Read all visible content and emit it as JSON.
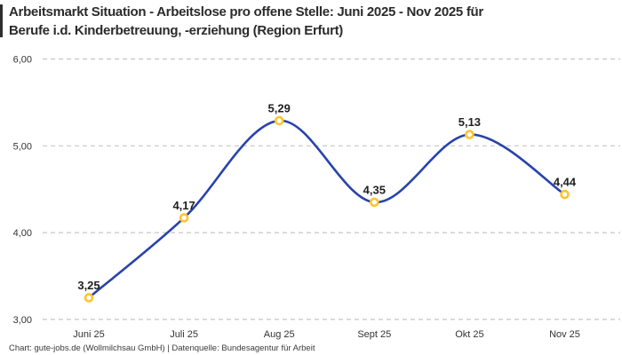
{
  "title": {
    "line1": "Arbeitsmarkt Situation - Arbeitslose pro offene Stelle: Juni 2025 - Nov 2025 für",
    "line2": "Berufe i.d. Kinderbetreuung, -erziehung (Region Erfurt)"
  },
  "footer": "Chart: gute-jobs.de (Wollmilchsau GmbH) | Datenquelle: Bundesagentur für Arbeit",
  "colors": {
    "line": "#2843ac",
    "marker_ring": "#ffc42e",
    "marker_fill": "#ffffff",
    "grid": "#c6c6c6",
    "axis_text": "#333333",
    "point_label_text": "#1f1f1f",
    "title_text": "#2b2b2b",
    "footer_text": "#3a3a3a",
    "background": "#ffffff"
  },
  "chart_data": {
    "type": "line",
    "line_style": "smooth",
    "categories": [
      "Juni 25",
      "Juli 25",
      "Aug 25",
      "Sept 25",
      "Okt 25",
      "Nov 25"
    ],
    "values": [
      3.25,
      4.17,
      5.29,
      4.35,
      5.13,
      4.44
    ],
    "point_labels": [
      "3,25",
      "4,17",
      "5,29",
      "4,35",
      "5,13",
      "4,44"
    ],
    "yticks": [
      {
        "value": 3,
        "label": "3,00"
      },
      {
        "value": 4,
        "label": "4,00"
      },
      {
        "value": 5,
        "label": "5,00"
      },
      {
        "value": 6,
        "label": "6,00"
      }
    ],
    "ylim": [
      3,
      6
    ],
    "xlabel": "",
    "ylabel": "",
    "grid": "horizontal-dashed",
    "legend": "none",
    "title": "Arbeitsmarkt Situation - Arbeitslose pro offene Stelle: Juni 2025 - Nov 2025 für Berufe i.d. Kinderbetreuung, -erziehung (Region Erfurt)"
  }
}
